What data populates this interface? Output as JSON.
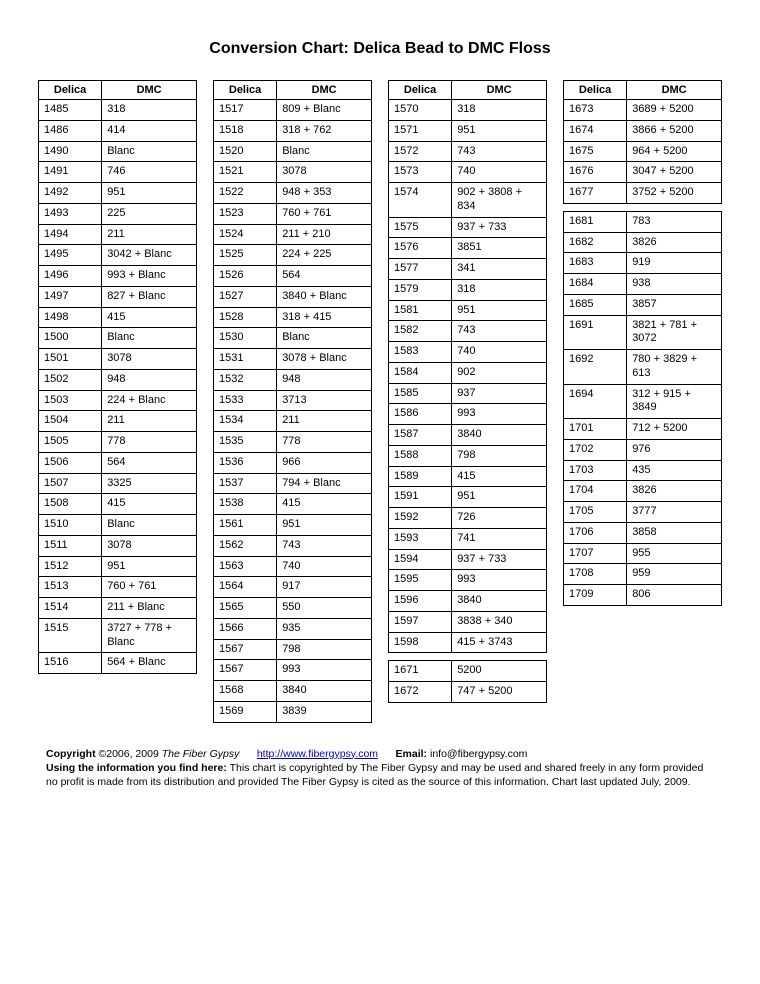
{
  "title": "Conversion Chart: Delica Bead to DMC Floss",
  "columnHeaders": {
    "delica": "Delica",
    "dmc": "DMC"
  },
  "tables": [
    {
      "rows": [
        [
          "1485",
          "318"
        ],
        [
          "1486",
          "414"
        ],
        [
          "1490",
          "Blanc"
        ],
        [
          "1491",
          "746"
        ],
        [
          "1492",
          "951"
        ],
        [
          "1493",
          "225"
        ],
        [
          "1494",
          "211"
        ],
        [
          "1495",
          "3042 + Blanc"
        ],
        [
          "1496",
          "993 + Blanc"
        ],
        [
          "1497",
          "827 + Blanc"
        ],
        [
          "1498",
          "415"
        ],
        [
          "1500",
          "Blanc"
        ],
        [
          "1501",
          "3078"
        ],
        [
          "1502",
          "948"
        ],
        [
          "1503",
          "224 + Blanc"
        ],
        [
          "1504",
          "211"
        ],
        [
          "1505",
          "778"
        ],
        [
          "1506",
          "564"
        ],
        [
          "1507",
          "3325"
        ],
        [
          "1508",
          "415"
        ],
        [
          "1510",
          "Blanc"
        ],
        [
          "1511",
          "3078"
        ],
        [
          "1512",
          "951"
        ],
        [
          "1513",
          "760 + 761"
        ],
        [
          "1514",
          "211 + Blanc"
        ],
        [
          "1515",
          "3727 + 778  + Blanc"
        ],
        [
          "1516",
          "564 + Blanc"
        ]
      ]
    },
    {
      "rows": [
        [
          "1517",
          "809 + Blanc"
        ],
        [
          "1518",
          " 318 + 762"
        ],
        [
          "1520",
          " Blanc"
        ],
        [
          "1521",
          " 3078"
        ],
        [
          "1522",
          " 948 + 353"
        ],
        [
          "1523",
          " 760 + 761"
        ],
        [
          "1524",
          " 211 + 210"
        ],
        [
          "1525",
          " 224 + 225"
        ],
        [
          "1526",
          " 564"
        ],
        [
          "1527",
          "  3840 + Blanc"
        ],
        [
          "1528",
          " 318 + 415"
        ],
        [
          "1530",
          "  Blanc"
        ],
        [
          "1531",
          "  3078 + Blanc"
        ],
        [
          "1532",
          "  948"
        ],
        [
          "1533",
          "  3713"
        ],
        [
          "1534",
          "  211"
        ],
        [
          "1535",
          "  778"
        ],
        [
          "1536",
          "  966"
        ],
        [
          "1537",
          "   794 + Blanc"
        ],
        [
          "1538",
          "  415"
        ],
        [
          "1561",
          "  951"
        ],
        [
          "1562",
          "  743"
        ],
        [
          "1563",
          "  740"
        ],
        [
          "1564",
          "  917"
        ],
        [
          "1565",
          "  550"
        ],
        [
          "1566",
          "  935"
        ],
        [
          "1567",
          "  798"
        ],
        [
          "1567",
          "  993"
        ],
        [
          "1568",
          "   3840"
        ],
        [
          "1569",
          "  3839"
        ]
      ]
    },
    {
      "rows": [
        [
          "1570",
          "   318"
        ],
        [
          "1571",
          "   951"
        ],
        [
          "1572",
          "   743"
        ],
        [
          "1573",
          "   740"
        ],
        [
          "1574",
          "   902 + 3808  + 834"
        ],
        [
          "1575",
          "   937 + 733"
        ],
        [
          "1576",
          "    3851"
        ],
        [
          "1577",
          "   341"
        ],
        [
          "1579",
          "   318"
        ],
        [
          "1581",
          "   951"
        ],
        [
          "1582",
          "   743"
        ],
        [
          "1583",
          "   740"
        ],
        [
          "1584",
          "   902"
        ],
        [
          "1585",
          "   937"
        ],
        [
          "1586",
          "   993"
        ],
        [
          "1587",
          "   3840"
        ],
        [
          "1588",
          "   798"
        ],
        [
          "1589",
          "   415"
        ],
        [
          "1591",
          "   951"
        ],
        [
          "1592",
          "   726"
        ],
        [
          "1593",
          "   741"
        ],
        [
          "1594",
          "   937 + 733"
        ],
        [
          "1595",
          "   993"
        ],
        [
          "1596",
          "    3840"
        ],
        [
          "1597",
          "    3838 + 340"
        ],
        [
          "1598",
          "    415 + 3743"
        ]
      ],
      "secondSectionRows": [
        [
          "1671",
          "   5200"
        ],
        [
          "1672",
          "   747 + 5200"
        ]
      ]
    },
    {
      "rows": [
        [
          "1673",
          "   3689 + 5200"
        ],
        [
          "1674",
          "   3866 + 5200"
        ],
        [
          "1675",
          "   964 + 5200"
        ],
        [
          "1676",
          "   3047 + 5200"
        ],
        [
          "1677",
          "   3752 + 5200"
        ]
      ],
      "secondSectionRows": [
        [
          "1681",
          "   783"
        ],
        [
          "1682",
          "   3826"
        ],
        [
          "1683",
          "   919"
        ],
        [
          "1684",
          "   938"
        ],
        [
          "1685",
          "   3857"
        ],
        [
          "1691",
          "   3821 + 781 + 3072"
        ],
        [
          "1692",
          "   780 + 3829 + 613"
        ],
        [
          "1694",
          "   312 + 915 + 3849"
        ],
        [
          "1701",
          "   712 + 5200"
        ],
        [
          "1702",
          "   976"
        ],
        [
          "1703",
          "   435"
        ],
        [
          "1704",
          "   3826"
        ],
        [
          "1705",
          "   3777"
        ],
        [
          "1706",
          "   3858"
        ],
        [
          "1707",
          "   955"
        ],
        [
          "1708",
          "   959"
        ],
        [
          "1709",
          "   806"
        ]
      ]
    }
  ],
  "footer": {
    "copyrightLabel": "Copyright",
    "copyrightYears": "©2006, 2009",
    "siteName": "The Fiber Gypsy",
    "url": "http://www.fibergypsy.com",
    "emailLabel": "Email:",
    "email": "info@fibergypsy.com",
    "usageLabel": "Using the information you find here:",
    "usageText": "This chart is copyrighted by The Fiber Gypsy and may be used and shared freely in any form provided no profit is made from its distribution and provided The Fiber Gypsy is cited as the source of this information.  Chart last updated July, 2009."
  }
}
